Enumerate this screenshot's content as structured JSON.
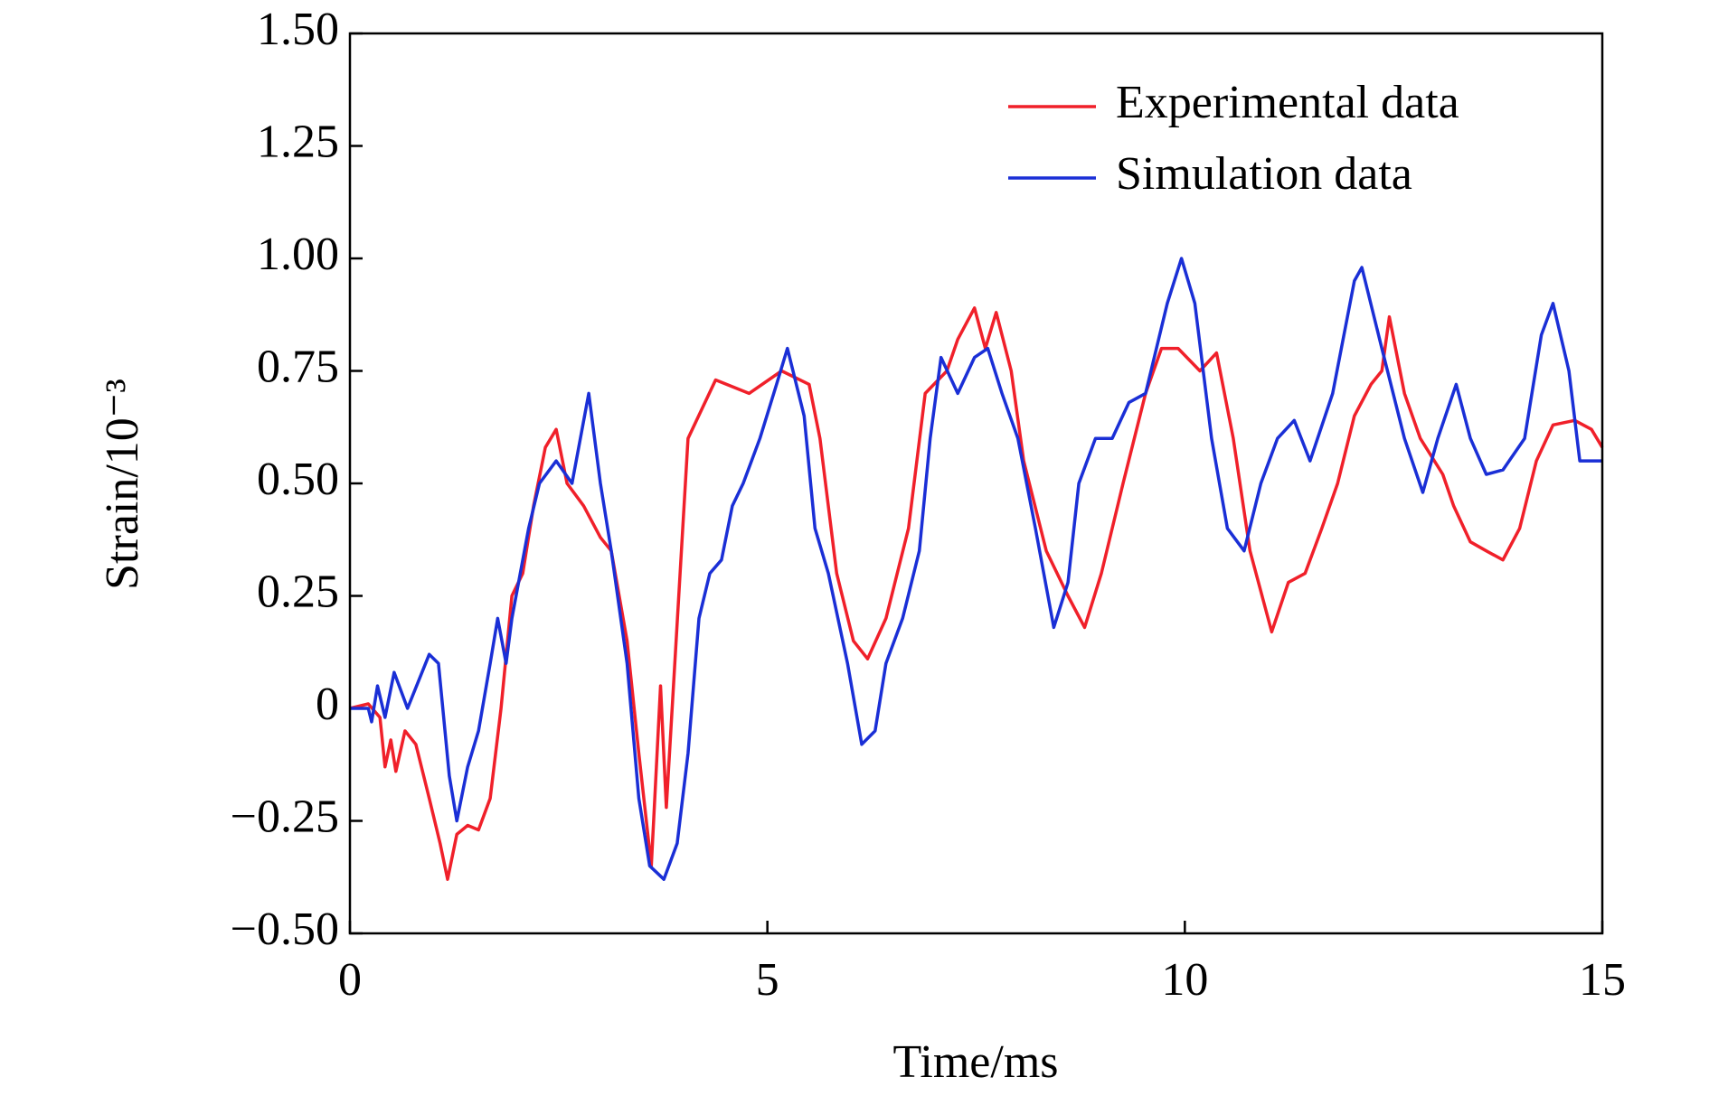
{
  "chart_data": {
    "type": "line",
    "xlabel": "Time/ms",
    "ylabel": "Strain/10⁻³",
    "xlim": [
      0,
      15
    ],
    "xticks": [
      0,
      5,
      10,
      15
    ],
    "ylim": [
      -0.5,
      1.5
    ],
    "yticks": [
      {
        "value": -0.5,
        "label": "−0.50"
      },
      {
        "value": -0.25,
        "label": "−0.25"
      },
      0,
      {
        "value": 0.25,
        "label": "0.25"
      },
      {
        "value": 0.5,
        "label": "0.50"
      },
      {
        "value": 0.75,
        "label": "0.75"
      },
      {
        "value": 1.0,
        "label": "1.00"
      },
      {
        "value": 1.25,
        "label": "1.25"
      },
      {
        "value": 1.5,
        "label": "1.50"
      }
    ],
    "legend": "upper right",
    "series": [
      {
        "name": "Experimental data",
        "color": "#f0202a",
        "x": [
          0,
          0.22,
          0.36,
          0.42,
          0.49,
          0.55,
          0.66,
          0.79,
          0.95,
          1.08,
          1.17,
          1.28,
          1.41,
          1.54,
          1.68,
          1.81,
          1.94,
          2.07,
          2.2,
          2.34,
          2.47,
          2.6,
          2.8,
          3.0,
          3.13,
          3.32,
          3.46,
          3.61,
          3.72,
          3.79,
          4.05,
          4.38,
          4.78,
          5.17,
          5.5,
          5.63,
          5.83,
          6.03,
          6.2,
          6.42,
          6.69,
          6.89,
          7.15,
          7.28,
          7.48,
          7.61,
          7.74,
          7.92,
          8.07,
          8.34,
          8.6,
          8.8,
          9.0,
          9.26,
          9.53,
          9.72,
          9.92,
          10.18,
          10.38,
          10.58,
          10.78,
          11.04,
          11.24,
          11.44,
          11.64,
          11.83,
          12.03,
          12.23,
          12.36,
          12.45,
          12.63,
          12.82,
          13.09,
          13.22,
          13.42,
          13.61,
          13.81,
          14.01,
          14.21,
          14.41,
          14.67,
          14.87,
          15
        ],
        "values": [
          0,
          0.01,
          -0.02,
          -0.13,
          -0.07,
          -0.14,
          -0.05,
          -0.08,
          -0.2,
          -0.3,
          -0.38,
          -0.28,
          -0.26,
          -0.27,
          -0.2,
          0.0,
          0.25,
          0.3,
          0.45,
          0.58,
          0.62,
          0.5,
          0.45,
          0.38,
          0.35,
          0.15,
          -0.1,
          -0.35,
          0.05,
          -0.22,
          0.6,
          0.73,
          0.7,
          0.75,
          0.72,
          0.6,
          0.3,
          0.15,
          0.11,
          0.2,
          0.4,
          0.7,
          0.75,
          0.82,
          0.89,
          0.8,
          0.88,
          0.75,
          0.55,
          0.35,
          0.25,
          0.18,
          0.3,
          0.5,
          0.7,
          0.8,
          0.8,
          0.75,
          0.79,
          0.6,
          0.35,
          0.17,
          0.28,
          0.3,
          0.4,
          0.5,
          0.65,
          0.72,
          0.75,
          0.87,
          0.7,
          0.6,
          0.52,
          0.45,
          0.37,
          0.35,
          0.33,
          0.4,
          0.55,
          0.63,
          0.64,
          0.62,
          0.58
        ]
      },
      {
        "name": "Simulation data",
        "color": "#1a2fd6",
        "x": [
          0,
          0.22,
          0.26,
          0.33,
          0.42,
          0.53,
          0.69,
          0.95,
          1.06,
          1.19,
          1.28,
          1.41,
          1.54,
          1.68,
          1.77,
          1.87,
          1.94,
          2.14,
          2.27,
          2.47,
          2.66,
          2.86,
          3.0,
          3.13,
          3.32,
          3.46,
          3.59,
          3.76,
          3.92,
          4.05,
          4.18,
          4.31,
          4.45,
          4.58,
          4.71,
          4.91,
          5.11,
          5.24,
          5.44,
          5.57,
          5.73,
          5.96,
          6.13,
          6.29,
          6.42,
          6.62,
          6.82,
          6.95,
          7.08,
          7.28,
          7.48,
          7.64,
          7.81,
          8.0,
          8.21,
          8.43,
          8.6,
          8.73,
          8.93,
          9.13,
          9.33,
          9.53,
          9.79,
          9.96,
          10.12,
          10.32,
          10.51,
          10.71,
          10.91,
          11.11,
          11.31,
          11.5,
          11.77,
          12.03,
          12.12,
          12.36,
          12.63,
          12.85,
          13.03,
          13.25,
          13.42,
          13.61,
          13.81,
          14.07,
          14.27,
          14.41,
          14.6,
          14.73,
          15
        ],
        "values": [
          0,
          0,
          -0.03,
          0.05,
          -0.02,
          0.08,
          0,
          0.12,
          0.1,
          -0.15,
          -0.25,
          -0.13,
          -0.05,
          0.1,
          0.2,
          0.1,
          0.2,
          0.4,
          0.5,
          0.55,
          0.5,
          0.7,
          0.5,
          0.35,
          0.1,
          -0.2,
          -0.35,
          -0.38,
          -0.3,
          -0.1,
          0.2,
          0.3,
          0.33,
          0.45,
          0.5,
          0.6,
          0.72,
          0.8,
          0.65,
          0.4,
          0.3,
          0.1,
          -0.08,
          -0.05,
          0.1,
          0.2,
          0.35,
          0.6,
          0.78,
          0.7,
          0.78,
          0.8,
          0.7,
          0.6,
          0.4,
          0.18,
          0.28,
          0.5,
          0.6,
          0.6,
          0.68,
          0.7,
          0.9,
          1.0,
          0.9,
          0.6,
          0.4,
          0.35,
          0.5,
          0.6,
          0.64,
          0.55,
          0.7,
          0.95,
          0.98,
          0.8,
          0.6,
          0.48,
          0.6,
          0.72,
          0.6,
          0.52,
          0.53,
          0.6,
          0.83,
          0.9,
          0.75,
          0.55,
          0.55
        ]
      }
    ]
  }
}
